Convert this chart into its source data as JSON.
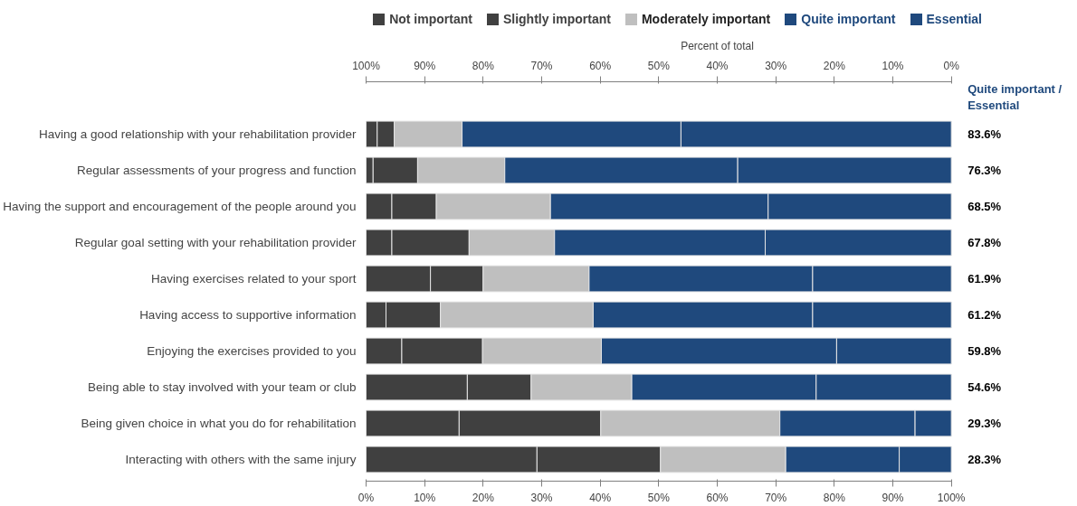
{
  "chart_data": {
    "type": "bar",
    "orientation": "horizontal",
    "stacked": true,
    "categories": [
      "Having a good relationship with your rehabilitation provider",
      "Regular assessments of your progress and function",
      "Having the support and encouragement of the people around you",
      "Regular goal setting with your rehabilitation provider",
      "Having exercises related to your sport",
      "Having access to supportive information",
      "Enjoying the exercises provided to you",
      "Being able to stay involved with your team or club",
      "Being given choice in what you do for rehabilitation",
      "Interacting with others with the same injury"
    ],
    "series": [
      {
        "name": "Not important",
        "color": "#404040",
        "values": [
          1.9,
          1.2,
          4.4,
          4.4,
          11.0,
          3.4,
          6.1,
          17.3,
          15.9,
          29.2
        ]
      },
      {
        "name": "Slightly important",
        "color": "#404040",
        "values": [
          2.9,
          7.6,
          7.6,
          13.2,
          9.0,
          9.3,
          13.8,
          10.9,
          24.2,
          21.1
        ]
      },
      {
        "name": "Moderately important",
        "color": "#bfbfbf",
        "values": [
          11.6,
          14.9,
          19.5,
          14.6,
          18.1,
          26.1,
          20.3,
          17.2,
          30.6,
          21.4
        ]
      },
      {
        "name": "Quite important",
        "color": "#1f497d",
        "values": [
          37.4,
          39.8,
          37.2,
          36.0,
          38.2,
          37.5,
          40.2,
          31.5,
          23.1,
          19.4
        ]
      },
      {
        "name": "Essential",
        "color": "#1f497d",
        "values": [
          46.2,
          36.5,
          31.3,
          31.8,
          23.7,
          23.7,
          19.6,
          23.1,
          6.2,
          8.9
        ]
      }
    ],
    "xlim": [
      0,
      100
    ],
    "xticks": [
      {
        "value": 0,
        "label": "0%"
      },
      {
        "value": 10,
        "label": "10%"
      },
      {
        "value": 20,
        "label": "20%"
      },
      {
        "value": 30,
        "label": "30%"
      },
      {
        "value": 40,
        "label": "40%"
      },
      {
        "value": 50,
        "label": "50%"
      },
      {
        "value": 60,
        "label": "60%"
      },
      {
        "value": 70,
        "label": "70%"
      },
      {
        "value": 80,
        "label": "80%"
      },
      {
        "value": 90,
        "label": "90%"
      },
      {
        "value": 100,
        "label": "100%"
      }
    ],
    "x2lim": [
      100,
      0
    ],
    "x2ticks": [
      {
        "value": 100,
        "label": "100%"
      },
      {
        "value": 90,
        "label": "90%"
      },
      {
        "value": 80,
        "label": "80%"
      },
      {
        "value": 70,
        "label": "70%"
      },
      {
        "value": 60,
        "label": "60%"
      },
      {
        "value": 50,
        "label": "50%"
      },
      {
        "value": 40,
        "label": "40%"
      },
      {
        "value": 30,
        "label": "30%"
      },
      {
        "value": 20,
        "label": "20%"
      },
      {
        "value": 10,
        "label": "10%"
      },
      {
        "value": 0,
        "label": "0%"
      }
    ],
    "x2label": "Percent of total",
    "annotations": [
      "Quite important / Essential",
      "83.6%",
      "76.3%",
      "68.5%",
      "67.8%",
      "61.9%",
      "61.2%",
      "59.8%",
      "54.6%",
      "29.3%",
      "28.3%"
    ],
    "legend": "top",
    "grid": false
  }
}
